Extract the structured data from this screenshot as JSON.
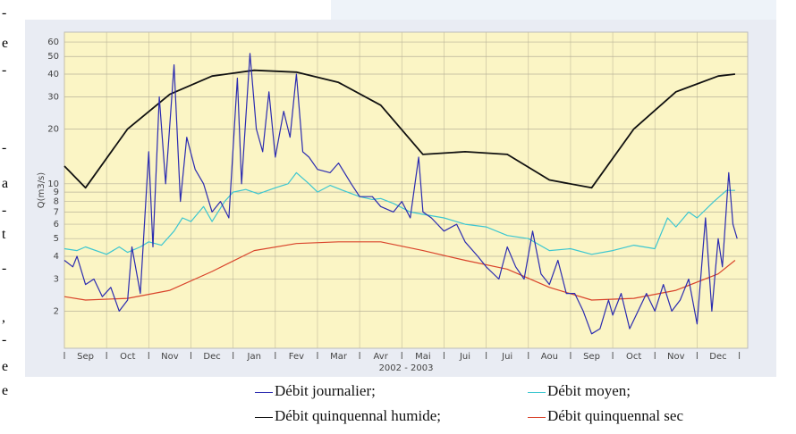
{
  "side_fragments": [
    "-",
    "e",
    "-",
    "-",
    "a",
    "-",
    "t",
    "-",
    ",",
    "-",
    "e",
    "e"
  ],
  "chart_data": {
    "type": "line",
    "ylabel": "Q(m3/s)",
    "xlabel": "2002 - 2003",
    "categories": [
      "Sep",
      "Oct",
      "Nov",
      "Dec",
      "Jan",
      "Fev",
      "Mar",
      "Avr",
      "Mai",
      "Jui",
      "Jui",
      "Aou",
      "Sep",
      "Oct",
      "Nov",
      "Dec"
    ],
    "xlim": [
      0,
      16.2
    ],
    "ylim": [
      1.25,
      68
    ],
    "log_y": true,
    "grid": true,
    "yticks": [
      2,
      3,
      4,
      5,
      6,
      7,
      8,
      9,
      10,
      20,
      30,
      40,
      50,
      60
    ],
    "series": [
      {
        "name": "Débit journalier;",
        "color": "#2b2bb0",
        "x": [
          0,
          0.2,
          0.3,
          0.5,
          0.7,
          0.9,
          1.1,
          1.3,
          1.5,
          1.6,
          1.8,
          2.0,
          2.1,
          2.25,
          2.4,
          2.6,
          2.75,
          2.9,
          3.1,
          3.3,
          3.5,
          3.7,
          3.9,
          4.1,
          4.2,
          4.4,
          4.55,
          4.7,
          4.85,
          5.0,
          5.2,
          5.35,
          5.5,
          5.65,
          5.8,
          6.0,
          6.3,
          6.5,
          6.8,
          7.0,
          7.3,
          7.5,
          7.8,
          8.0,
          8.2,
          8.4,
          8.5,
          8.7,
          9.0,
          9.3,
          9.5,
          9.8,
          10.0,
          10.3,
          10.5,
          10.7,
          10.9,
          11.1,
          11.3,
          11.5,
          11.7,
          11.9,
          12.1,
          12.3,
          12.5,
          12.7,
          12.9,
          13.0,
          13.2,
          13.4,
          13.6,
          13.8,
          14.0,
          14.2,
          14.4,
          14.6,
          14.8,
          15.0,
          15.2,
          15.35,
          15.5,
          15.6,
          15.75,
          15.85,
          15.95
        ],
        "values": [
          3.8,
          3.5,
          4,
          2.8,
          3,
          2.4,
          2.7,
          2.0,
          2.3,
          4.5,
          2.5,
          15,
          4.5,
          30,
          10,
          45,
          8,
          18,
          12,
          10,
          7,
          8,
          6.5,
          38,
          10,
          52,
          20,
          15,
          32,
          14,
          25,
          18,
          40,
          15,
          14,
          12,
          11.5,
          13,
          10,
          8.5,
          8.5,
          7.5,
          7,
          8,
          6.5,
          14,
          7,
          6.5,
          5.5,
          6,
          4.8,
          4.0,
          3.5,
          3,
          4.5,
          3.5,
          3.0,
          5.5,
          3.2,
          2.8,
          3.8,
          2.5,
          2.5,
          2.0,
          1.5,
          1.6,
          2.3,
          1.9,
          2.5,
          1.6,
          2.0,
          2.5,
          2.0,
          2.8,
          2.0,
          2.3,
          3.0,
          1.7,
          6.5,
          2.0,
          5.0,
          3.5,
          11.5,
          6,
          5.0
        ]
      },
      {
        "name": "Débit moyen;",
        "color": "#3cc6d0",
        "x": [
          0,
          0.3,
          0.5,
          1,
          1.3,
          1.5,
          1.8,
          2,
          2.3,
          2.6,
          2.8,
          3,
          3.3,
          3.5,
          3.8,
          4,
          4.3,
          4.6,
          5,
          5.3,
          5.5,
          5.8,
          6,
          6.3,
          6.6,
          7,
          7.3,
          7.5,
          7.8,
          8.2,
          8.5,
          9,
          9.5,
          10,
          10.5,
          11,
          11.5,
          12,
          12.5,
          13,
          13.5,
          14,
          14.3,
          14.5,
          14.8,
          15,
          15.4,
          15.7,
          15.9
        ],
        "values": [
          4.4,
          4.3,
          4.5,
          4.1,
          4.5,
          4.2,
          4.5,
          4.8,
          4.6,
          5.5,
          6.5,
          6.2,
          7.5,
          6.2,
          8,
          9,
          9.3,
          8.8,
          9.5,
          10,
          11.5,
          10,
          9,
          9.8,
          9.2,
          8.5,
          8.2,
          8.3,
          7.8,
          7,
          6.8,
          6.5,
          6,
          5.8,
          5.2,
          5,
          4.3,
          4.4,
          4.1,
          4.3,
          4.6,
          4.4,
          6.5,
          5.8,
          7,
          6.5,
          8,
          9.2,
          9.2
        ]
      },
      {
        "name": "Débit quinquennal  humide;",
        "color": "#111111",
        "x": [
          0,
          0.5,
          1.5,
          2.5,
          3.5,
          4.5,
          5.5,
          6.5,
          7.5,
          8.5,
          9.5,
          10.5,
          11.5,
          12.5,
          13.5,
          14.5,
          15.5,
          15.9
        ],
        "values": [
          12.5,
          9.5,
          20,
          31,
          39,
          42,
          41,
          36,
          27,
          14.5,
          15,
          14.5,
          10.5,
          9.5,
          20,
          32,
          39,
          40
        ]
      },
      {
        "name": "Débit quinquennal  sec",
        "color": "#d9442b",
        "x": [
          0,
          0.5,
          1.5,
          2.5,
          3.5,
          4.5,
          5.5,
          6.5,
          7.5,
          8.5,
          9.5,
          10.5,
          11.5,
          12.5,
          13.5,
          14.5,
          15.5,
          15.9
        ],
        "values": [
          2.4,
          2.3,
          2.35,
          2.6,
          3.3,
          4.3,
          4.7,
          4.8,
          4.8,
          4.3,
          3.8,
          3.4,
          2.7,
          2.3,
          2.35,
          2.6,
          3.2,
          3.8
        ]
      }
    ]
  }
}
